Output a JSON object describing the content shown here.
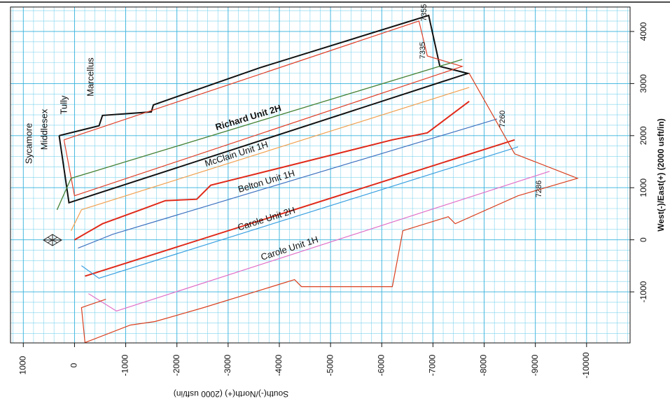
{
  "chart_data": {
    "type": "line",
    "xlabel": "South(-)/North(+) (2000 usft/in)",
    "ylabel": "West(-)/East(+) (2000 usft/in)",
    "xlim": [
      1250,
      -10850
    ],
    "ylim": [
      -1980,
      4470
    ],
    "xticks": [
      1000,
      0,
      -1000,
      -2000,
      -3000,
      -4000,
      -5000,
      -6000,
      -7000,
      -8000,
      -9000,
      -10000
    ],
    "yticks": [
      -1000,
      0,
      1000,
      2000,
      3000,
      4000
    ],
    "grid": true,
    "minor_grid_step": 200,
    "annotations": [
      "Sycamore",
      "Middlesex",
      "Tully",
      "Marcellus",
      "7335",
      "7355",
      "7260",
      "7286"
    ],
    "series": [
      {
        "color": "#111111",
        "x": [
          300,
          -480,
          -546,
          -1500,
          -1540,
          -3615,
          -6917,
          -7135,
          -7681,
          109,
          300
        ],
        "y": [
          2000,
          2190,
          2389,
          2456,
          2590,
          3302,
          4309,
          3329,
          3195,
          711,
          2000
        ]
      },
      {
        "color": "#e0402a",
        "x": [
          205,
          -6726,
          -6890,
          -7572,
          0,
          205
        ],
        "y": [
          1919,
          4201,
          3530,
          3329,
          846,
          1919
        ]
      },
      {
        "name": "Richard Unit 2H",
        "color": "#2a5db0",
        "x": [
          341,
          68,
          -614,
          -7572
        ],
        "y": [
          577,
          1181,
          1383,
          3463
        ]
      },
      {
        "color": "#4e8a2c",
        "x": [
          341,
          68,
          -614,
          -7572
        ],
        "y": [
          577,
          1181,
          1383,
          3463
        ]
      },
      {
        "name": "McClain Unit 1H",
        "color": "#f0a050",
        "x": [
          68,
          -136,
          -7708
        ],
        "y": [
          174,
          577,
          2926
        ]
      },
      {
        "color": "#e02a1a",
        "x": [
          0,
          -546,
          -1296,
          -1774,
          -2387,
          -2660,
          -6207,
          -6890,
          -7162,
          -7708
        ],
        "y": [
          0,
          309,
          577,
          752,
          779,
          1047,
          1919,
          2054,
          2255,
          2658
        ]
      },
      {
        "name": "Belton Unit 1H",
        "color": "#3f72c0",
        "x": [
          -68,
          -750,
          -8254
        ],
        "y": [
          -161,
          107,
          2322
        ]
      },
      {
        "color": "#e02a1a",
        "x": [
          -205,
          -8595
        ],
        "y": [
          -698,
          1919
        ]
      },
      {
        "name": "Carole Unit 2H",
        "color": "#3aa0e0",
        "x": [
          -136,
          -477,
          -8663
        ],
        "y": [
          -497,
          -738,
          1785
        ]
      },
      {
        "name": "Carole Unit 1H",
        "color": "#e070c8",
        "x": [
          -273,
          -819,
          -9277
        ],
        "y": [
          -1034,
          -1369,
          1315
        ]
      },
      {
        "color": "#d9401f",
        "x": [
          -614,
          -136,
          -205,
          -1091,
          -1569,
          -2524,
          -4297,
          -4434,
          -6207,
          -6412,
          -7299,
          -7435,
          -8663,
          -9823,
          -8595,
          -7708
        ],
        "y": [
          -1141,
          -1302,
          -1973,
          -1638,
          -1570,
          -1302,
          -765,
          -899,
          -899,
          174,
          443,
          309,
          846,
          1181,
          1651,
          3195
        ]
      }
    ]
  }
}
